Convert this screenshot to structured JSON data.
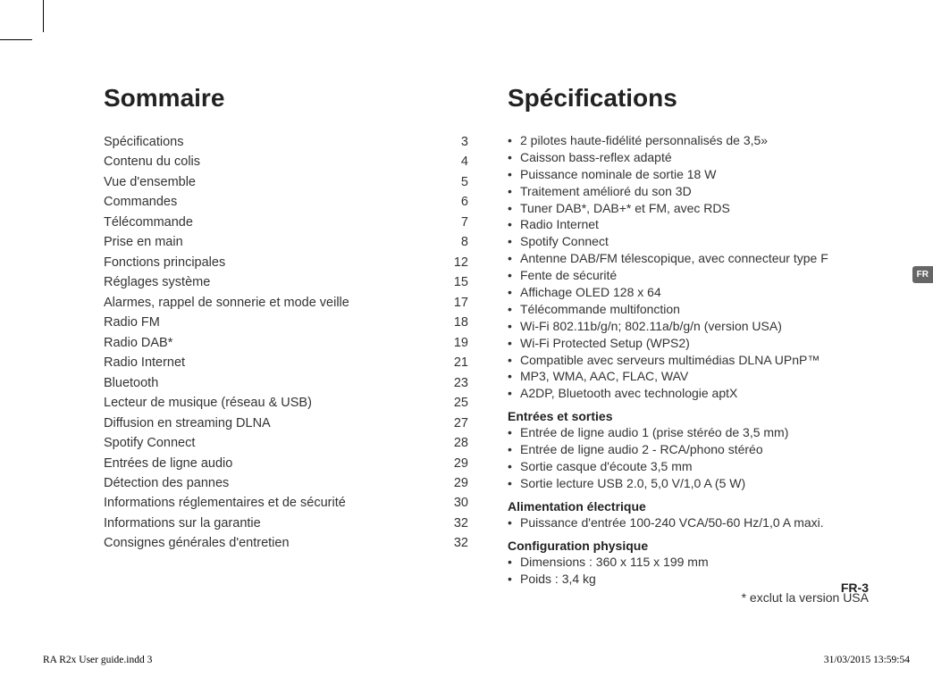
{
  "langTab": "FR",
  "pageNumber": "FR-3",
  "footer": {
    "left": "RA R2x User guide.indd   3",
    "right": "31/03/2015   13:59:54"
  },
  "left": {
    "title": "Sommaire",
    "toc": [
      {
        "label": "Spécifications",
        "page": "3"
      },
      {
        "label": "Contenu du colis",
        "page": "4"
      },
      {
        "label": "Vue d'ensemble",
        "page": "5"
      },
      {
        "label": "Commandes",
        "page": "6"
      },
      {
        "label": "Télécommande",
        "page": "7"
      },
      {
        "label": "Prise en main",
        "page": "8"
      },
      {
        "label": "Fonctions principales",
        "page": "12"
      },
      {
        "label": "Réglages système",
        "page": "15"
      },
      {
        "label": "Alarmes, rappel de sonnerie et mode veille",
        "page": "17"
      },
      {
        "label": "Radio FM",
        "page": "18"
      },
      {
        "label": "Radio DAB*",
        "page": "19"
      },
      {
        "label": "Radio Internet",
        "page": "21"
      },
      {
        "label": "Bluetooth",
        "page": "23"
      },
      {
        "label": "Lecteur de musique (réseau & USB)",
        "page": "25"
      },
      {
        "label": "Diffusion en streaming DLNA",
        "page": "27"
      },
      {
        "label": "Spotify Connect",
        "page": "28"
      },
      {
        "label": "Entrées de ligne audio",
        "page": "29"
      },
      {
        "label": "Détection des pannes",
        "page": "29"
      },
      {
        "label": "Informations réglementaires et de sécurité",
        "page": "30"
      },
      {
        "label": "Informations sur la garantie",
        "page": "32"
      },
      {
        "label": "Consignes générales d'entretien",
        "page": "32"
      }
    ]
  },
  "right": {
    "title": "Spécifications",
    "mainList": [
      "2 pilotes haute-fidélité personnalisés de 3,5»",
      "Caisson bass-reflex adapté",
      "Puissance nominale de sortie 18 W",
      "Traitement amélioré du son 3D",
      "Tuner DAB*, DAB+* et FM, avec RDS",
      "Radio Internet",
      "Spotify Connect",
      "Antenne DAB/FM télescopique, avec connecteur type F",
      "Fente de sécurité",
      "Affichage OLED 128 x 64",
      "Télécommande multifonction",
      "Wi-Fi 802.11b/g/n; 802.11a/b/g/n (version USA)",
      "Wi-Fi Protected Setup (WPS2)",
      "Compatible avec serveurs multimédias DLNA UPnP™",
      "MP3, WMA, AAC, FLAC, WAV",
      "A2DP, Bluetooth avec technologie aptX"
    ],
    "sections": [
      {
        "heading": "Entrées et sorties",
        "items": [
          "Entrée de ligne audio 1 (prise stéréo de 3,5 mm)",
          "Entrée de ligne audio 2 - RCA/phono stéréo",
          "Sortie casque d'écoute 3,5 mm",
          "Sortie lecture USB 2.0, 5,0 V/1,0 A (5 W)"
        ]
      },
      {
        "heading": "Alimentation électrique",
        "items": [
          "Puissance d'entrée 100-240 VCA/50-60 Hz/1,0 A maxi."
        ]
      },
      {
        "heading": "Configuration physique",
        "items": [
          "Dimensions : 360 x 115 x 199 mm",
          "Poids : 3,4 kg"
        ]
      }
    ],
    "footnote": "* exclut la version USA"
  }
}
